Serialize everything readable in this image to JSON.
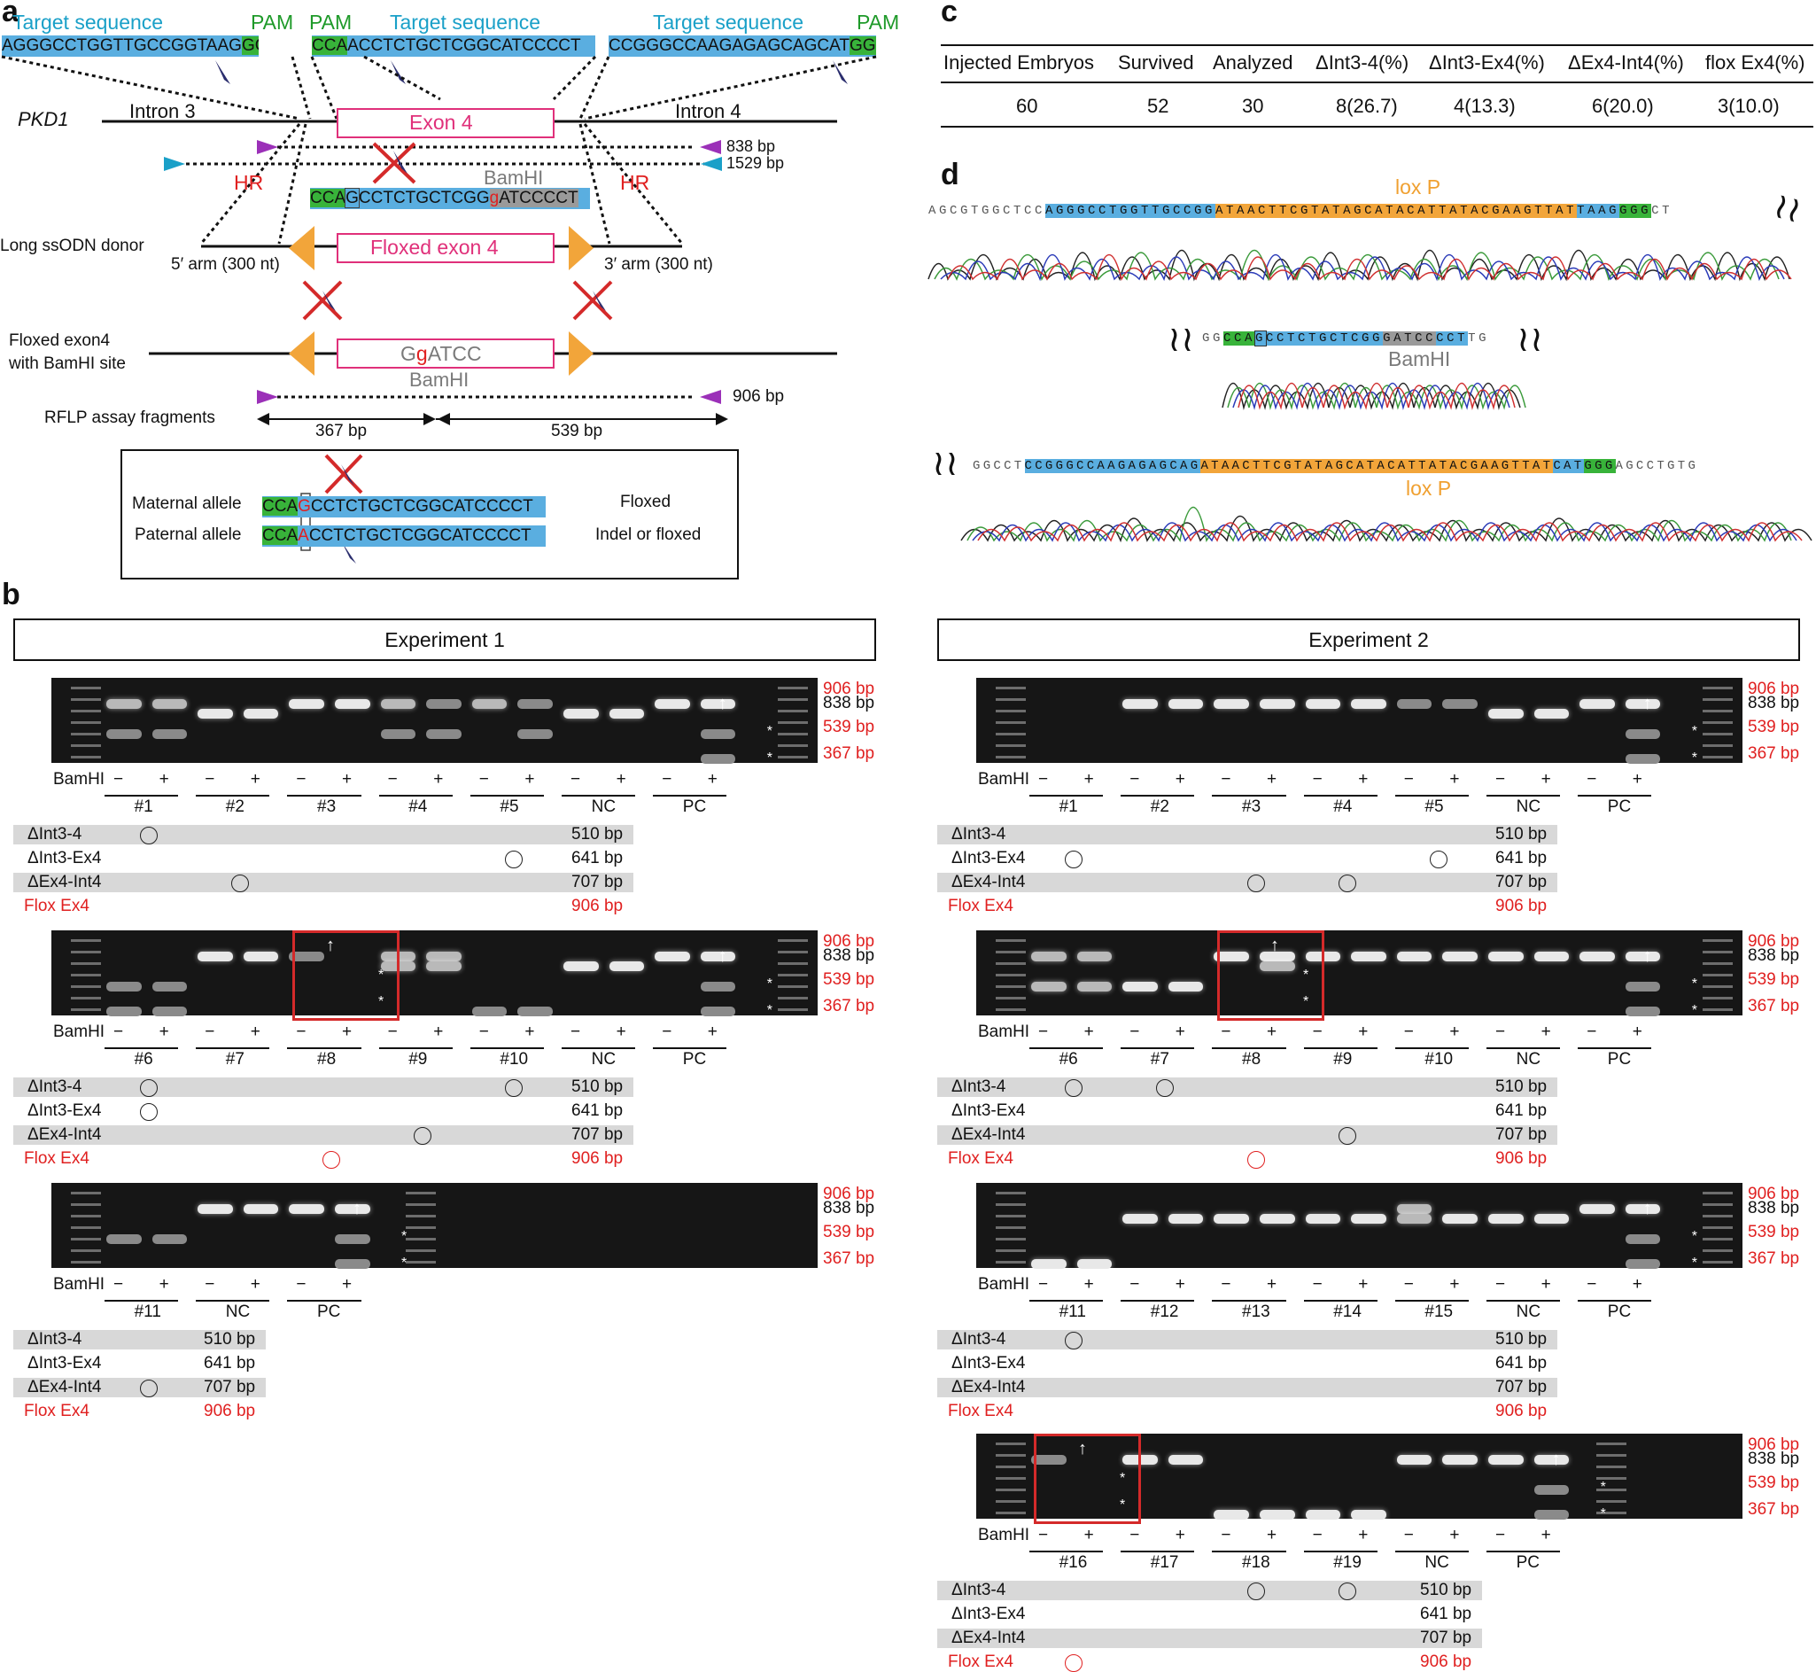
{
  "panels": {
    "a": "a",
    "b": "b",
    "c": "c",
    "d": "d"
  },
  "panel_a": {
    "target_label": "Target sequence",
    "pam_label": "PAM",
    "seq1": "AGGGCCTGGTTGCCGGTAAG",
    "seq1_pam": "GGG",
    "seq2_pam": "CCA",
    "seq2": "ACCTCTGCTCGGCATCCCCT",
    "seq3": "CCGGGCCAAGAGAGCAGCAT",
    "seq3_pam": "GGG",
    "gene": "PKD1",
    "intron3": "Intron 3",
    "intron4": "Intron 4",
    "exon4": "Exon 4",
    "bp838": "838 bp",
    "bp1529": "1529 bp",
    "hr": "HR",
    "bamhi": "BamHI",
    "ssodn_pam": "CCA",
    "ssodn_g": "G",
    "ssodn_mid": "CCTCTGCTCGG",
    "ssodn_g2": "g",
    "ssodn_end": "ATCCCCT",
    "long_donor": "Long ssODN donor",
    "floxed_exon": "Floxed exon 4",
    "arm5": "5′ arm (300 nt)",
    "arm3": "3′ arm (300 nt)",
    "floxed_line1": "Floxed exon4",
    "floxed_line2": "with BamHI site",
    "ggatcc_g1": "G",
    "ggatcc_g2": "g",
    "ggatcc_rest": "ATCC",
    "bp906": "906 bp",
    "rflp": "RFLP assay fragments",
    "bp367": "367 bp",
    "bp539": "539 bp",
    "maternal": "Maternal allele",
    "paternal": "Paternal allele",
    "allele_pam": "CCA",
    "allele_mat_x": "G",
    "allele_pat_x": "A",
    "allele_seq": "CCTCTGCTCGGCATCCCCT",
    "floxed": "Floxed",
    "indel": "Indel or floxed"
  },
  "panel_c": {
    "headers": [
      "Injected Embryos",
      "Survived",
      "Analyzed",
      "ΔInt3-4(%)",
      "ΔInt3-Ex4(%)",
      "ΔEx4-Int4(%)",
      "flox Ex4(%)"
    ],
    "values": [
      "60",
      "52",
      "30",
      "8(26.7)",
      "4(13.3)",
      "6(20.0)",
      "3(10.0)"
    ]
  },
  "panel_d": {
    "seq1_pre": "AGCGTGGCTCC",
    "seq1_blue": "AGGGCCTGGTTGCCGG",
    "seq1_orange": "ATAACTTCGTATAGCATACATTATACGAAGTTAT",
    "seq1_blue2": "TAAG",
    "seq1_green": "GGG",
    "seq1_post": "CT",
    "loxp": "lox P",
    "seq2_pre": "GG",
    "seq2_green": "CCA",
    "seq2_box": "G",
    "seq2_blue": "CCTCTGCTCGG",
    "seq2_gray": "GATCC",
    "seq2_blue2": "CCT",
    "seq2_post": "TG",
    "bamhi": "BamHI",
    "seq3_pre": "GGCCT",
    "seq3_blue": "CCGGGCCAAGAGAGCAG",
    "seq3_orange": "ATAACTTCGTATAGCATACATTATACGAAGTTAT",
    "seq3_blue2": "CAT",
    "seq3_green": "GGG",
    "seq3_post": "AGCCTGTG"
  },
  "panel_b": {
    "exp1": "Experiment 1",
    "exp2": "Experiment 2",
    "bamhi": "BamHI",
    "minus": "−",
    "plus": "+",
    "size_labels": [
      "906 bp",
      "838 bp",
      "539 bp",
      "367 bp"
    ],
    "table_labels": [
      "ΔInt3-4",
      "ΔInt3-Ex4",
      "ΔEx4-Int4",
      "Flox Ex4"
    ],
    "table_sizes": [
      "510 bp",
      "641 bp",
      "707 bp",
      "906 bp"
    ],
    "e1_gel1": [
      "#1",
      "#2",
      "#3",
      "#4",
      "#5",
      "NC",
      "PC"
    ],
    "e1_gel2": [
      "#6",
      "#7",
      "#8",
      "#9",
      "#10",
      "NC",
      "PC"
    ],
    "e1_gel3": [
      "#11",
      "NC",
      "PC"
    ],
    "e2_gel1": [
      "#1",
      "#2",
      "#3",
      "#4",
      "#5",
      "NC",
      "PC"
    ],
    "e2_gel2": [
      "#6",
      "#7",
      "#8",
      "#9",
      "#10",
      "NC",
      "PC"
    ],
    "e2_gel3": [
      "#11",
      "#12",
      "#13",
      "#14",
      "#15",
      "NC",
      "PC"
    ],
    "e2_gel4": [
      "#16",
      "#17",
      "#18",
      "#19",
      "NC",
      "PC"
    ],
    "star": "*",
    "arrow": "↑"
  }
}
